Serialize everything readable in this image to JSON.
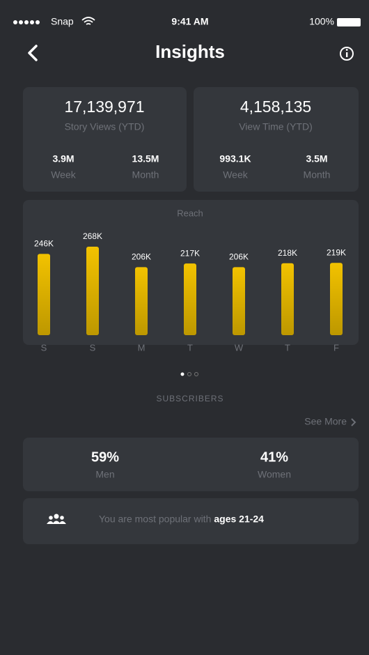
{
  "status": {
    "carrier": "Snap",
    "time": "9:41 AM",
    "battery": "100%"
  },
  "header": {
    "title": "Insights"
  },
  "stats": [
    {
      "value": "17,139,971",
      "label": "Story Views (YTD)",
      "week": "3.9M",
      "week_label": "Week",
      "month": "13.5M",
      "month_label": "Month"
    },
    {
      "value": "4,158,135",
      "label": "View Time (YTD)",
      "week": "993.1K",
      "week_label": "Week",
      "month": "3.5M",
      "month_label": "Month"
    }
  ],
  "chart_data": {
    "type": "bar",
    "title": "Reach",
    "categories": [
      "S",
      "S",
      "M",
      "T",
      "W",
      "T",
      "F"
    ],
    "values": [
      246000,
      268000,
      206000,
      217000,
      206000,
      218000,
      219000
    ],
    "value_labels": [
      "246K",
      "268K",
      "206K",
      "217K",
      "206K",
      "218K",
      "219K"
    ],
    "color": "#f2c200"
  },
  "subscribers": {
    "title": "SUBSCRIBERS",
    "see_more": "See More",
    "men": {
      "value": "59%",
      "label": "Men"
    },
    "women": {
      "value": "41%",
      "label": "Women"
    }
  },
  "popular": {
    "text": "You are most popular with",
    "highlight": "ages 21-24"
  }
}
